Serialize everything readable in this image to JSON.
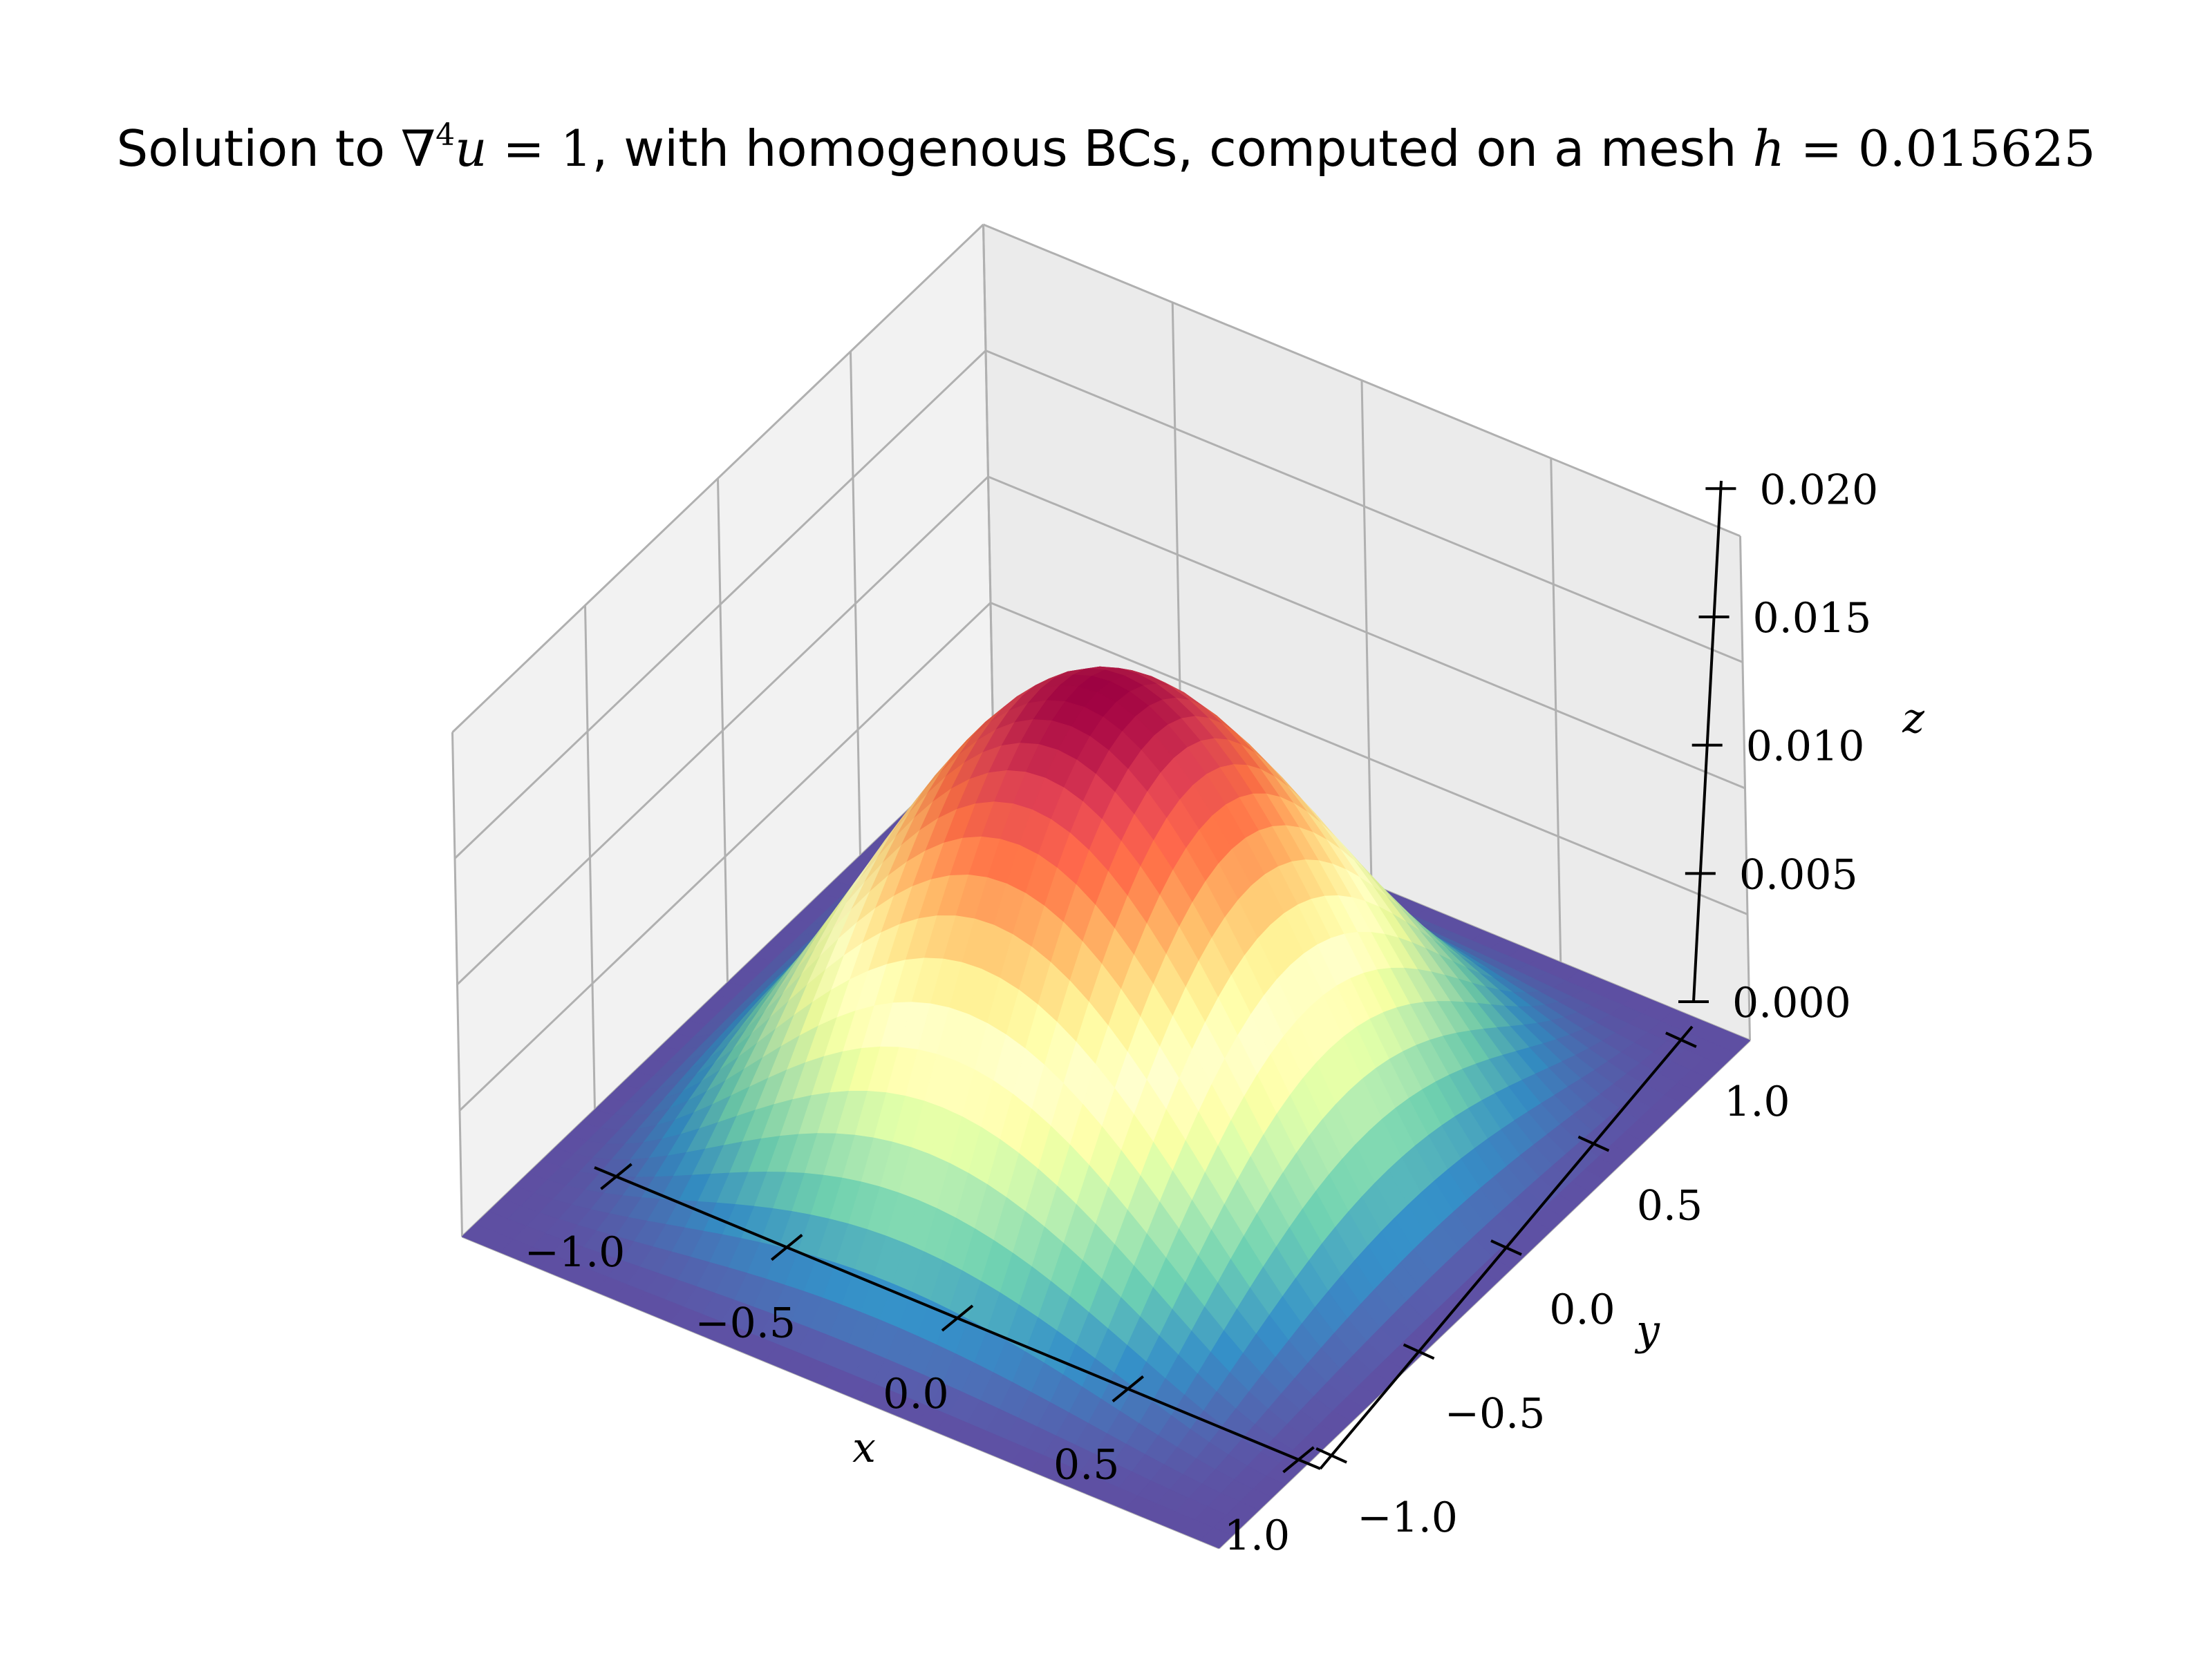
{
  "chart_data": {
    "type": "surface3d",
    "title": {
      "prefix": "Solution to ",
      "eq_nabla": "∇",
      "eq_sup": "4",
      "eq_u": "u",
      "eq_rest": " = 1",
      "middle": ", with homogenous BCs, computed on a mesh ",
      "h_var": "h",
      "h_value": " = 0.015625"
    },
    "xlabel": "x",
    "ylabel": "y",
    "zlabel": "z",
    "xlim": [
      -1,
      1
    ],
    "ylim": [
      -1,
      1
    ],
    "zlim": [
      0,
      0.02
    ],
    "x_ticks": [
      -1.0,
      -0.5,
      0.0,
      0.5,
      1.0
    ],
    "x_tick_labels": [
      "−1.0",
      "−0.5",
      "0.0",
      "0.5",
      "1.0"
    ],
    "y_ticks": [
      -1.0,
      -0.5,
      0.0,
      0.5,
      1.0
    ],
    "y_tick_labels": [
      "−1.0",
      "−0.5",
      "0.0",
      "0.5",
      "1.0"
    ],
    "z_ticks": [
      0.0,
      0.005,
      0.01,
      0.015,
      0.02
    ],
    "z_tick_labels": [
      "0.000",
      "0.005",
      "0.010",
      "0.015",
      "0.020"
    ],
    "colormap": "Spectral_r",
    "grid": true,
    "peak_value": 0.0177,
    "peak_location": [
      0,
      0
    ],
    "boundary_value": 0.0
  }
}
